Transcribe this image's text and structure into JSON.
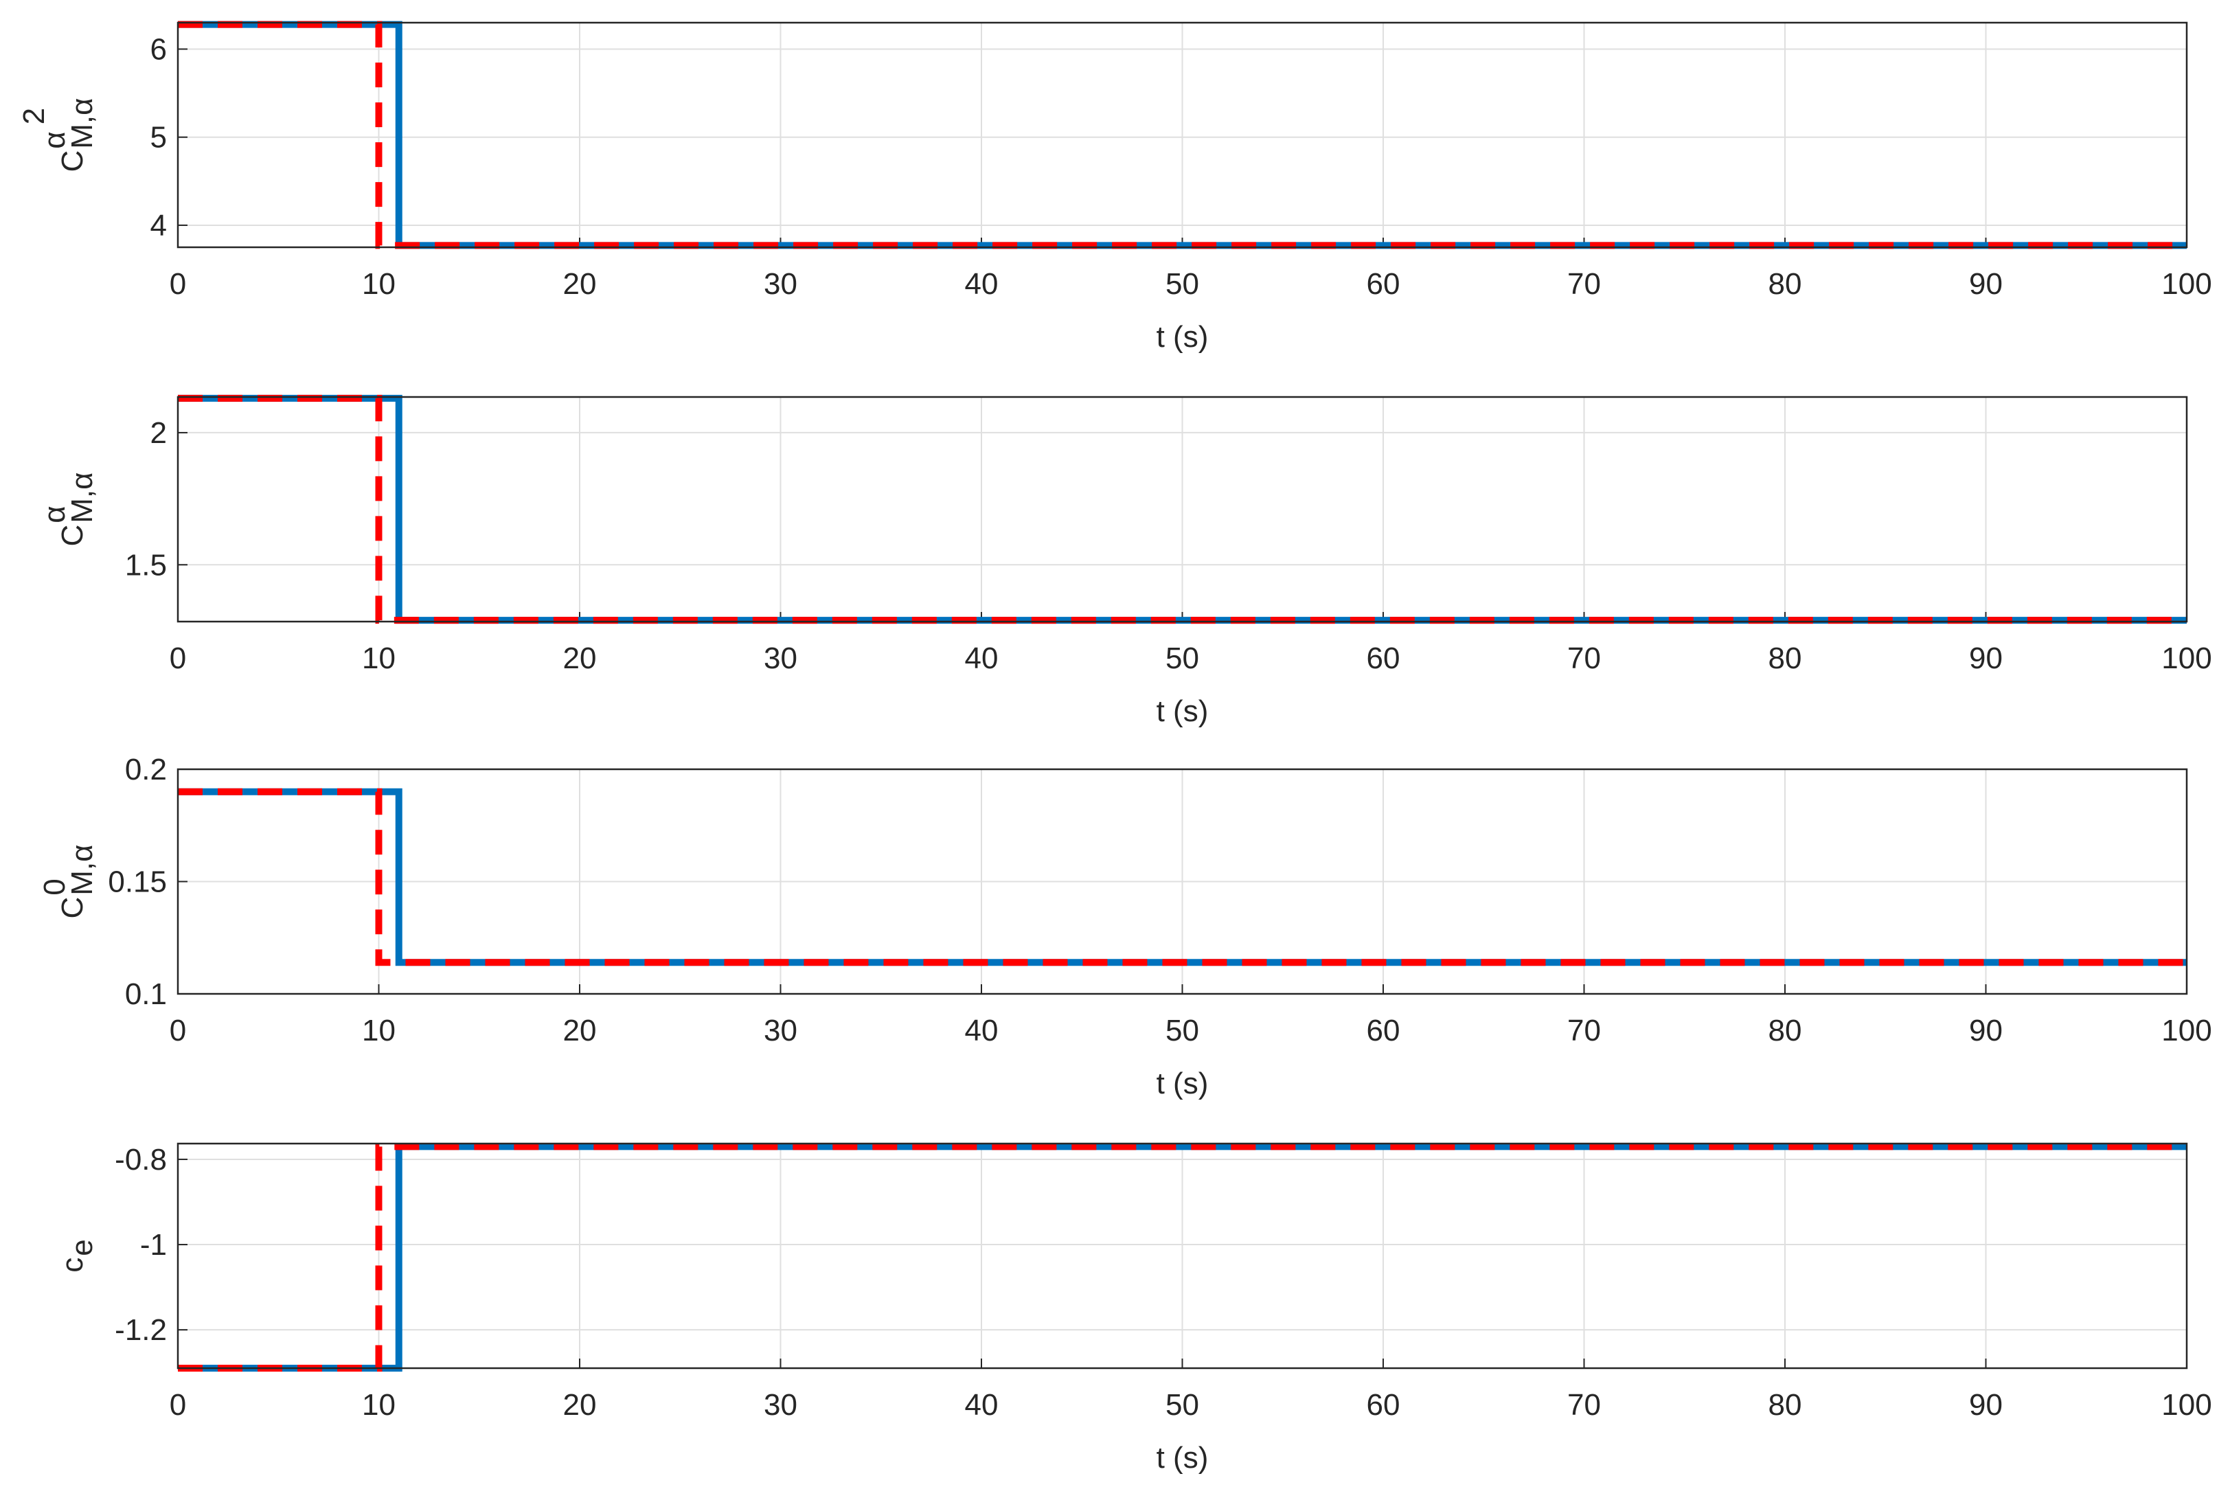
{
  "chart_data": [
    {
      "type": "line",
      "xlabel": "t (s)",
      "ylabel": {
        "base": "C",
        "sup": "α",
        "sup2": "2",
        "sub": "M,α"
      },
      "xlim": [
        0,
        100
      ],
      "xticks": [
        0,
        10,
        20,
        30,
        40,
        50,
        60,
        70,
        80,
        90,
        100
      ],
      "ylim": [
        3.75,
        6.3
      ],
      "yticks": [
        4,
        5,
        6
      ],
      "grid": true,
      "series": [
        {
          "color": "#0072bd",
          "style": "solid",
          "x": [
            0,
            11,
            11,
            100
          ],
          "values": [
            6.28,
            6.28,
            3.77,
            3.77
          ]
        },
        {
          "color": "#ff0000",
          "style": "dashed",
          "x": [
            0,
            10,
            10,
            100
          ],
          "values": [
            6.28,
            6.28,
            3.77,
            3.77
          ]
        }
      ]
    },
    {
      "type": "line",
      "xlabel": "t (s)",
      "ylabel": {
        "base": "C",
        "sup": "α",
        "sub": "M,α"
      },
      "xlim": [
        0,
        100
      ],
      "xticks": [
        0,
        10,
        20,
        30,
        40,
        50,
        60,
        70,
        80,
        90,
        100
      ],
      "ylim": [
        1.285,
        2.135
      ],
      "yticks": [
        1.5,
        2
      ],
      "grid": true,
      "series": [
        {
          "color": "#0072bd",
          "style": "solid",
          "x": [
            0,
            11,
            11,
            100
          ],
          "values": [
            2.13,
            2.13,
            1.29,
            1.29
          ]
        },
        {
          "color": "#ff0000",
          "style": "dashed",
          "x": [
            0,
            10,
            10,
            100
          ],
          "values": [
            2.13,
            2.13,
            1.29,
            1.29
          ]
        }
      ]
    },
    {
      "type": "line",
      "xlabel": "t (s)",
      "ylabel": {
        "base": "C",
        "sup": "0",
        "sub": "M,α"
      },
      "xlim": [
        0,
        100
      ],
      "xticks": [
        0,
        10,
        20,
        30,
        40,
        50,
        60,
        70,
        80,
        90,
        100
      ],
      "ylim": [
        0.1,
        0.2
      ],
      "yticks": [
        0.1,
        0.15,
        0.2
      ],
      "grid": true,
      "series": [
        {
          "color": "#0072bd",
          "style": "solid",
          "x": [
            0,
            11,
            11,
            100
          ],
          "values": [
            0.19,
            0.19,
            0.114,
            0.114
          ]
        },
        {
          "color": "#ff0000",
          "style": "dashed",
          "x": [
            0,
            10,
            10,
            100
          ],
          "values": [
            0.19,
            0.19,
            0.114,
            0.114
          ]
        }
      ]
    },
    {
      "type": "line",
      "xlabel": "t (s)",
      "ylabel": {
        "base": "c",
        "sub": "e"
      },
      "xlim": [
        0,
        100
      ],
      "xticks": [
        0,
        10,
        20,
        30,
        40,
        50,
        60,
        70,
        80,
        90,
        100
      ],
      "ylim": [
        -1.29,
        -0.763
      ],
      "yticks": [
        -1.2,
        -1,
        -0.8
      ],
      "grid": true,
      "series": [
        {
          "color": "#0072bd",
          "style": "solid",
          "x": [
            0,
            11,
            11,
            100
          ],
          "values": [
            -1.29,
            -1.29,
            -0.77,
            -0.77
          ]
        },
        {
          "color": "#ff0000",
          "style": "dashed",
          "x": [
            0,
            10,
            10,
            100
          ],
          "values": [
            -1.29,
            -1.29,
            -0.77,
            -0.77
          ]
        }
      ]
    }
  ]
}
